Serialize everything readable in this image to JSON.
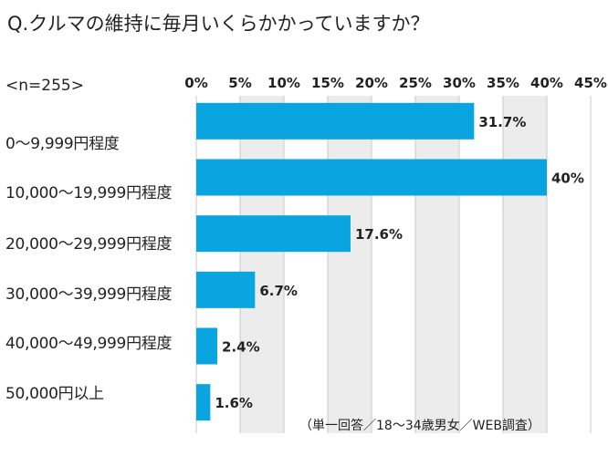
{
  "question": "Q.クルマの維持に毎月いくらかかっていますか？",
  "sample": "<n=255>",
  "note": "（単一回答／18～34歳男女／WEB調査）",
  "colors": {
    "bar": "#0aa5e0",
    "band": "#ececec",
    "axis": "#c8c8c8"
  },
  "chart_data": {
    "type": "bar",
    "orientation": "horizontal",
    "categories": [
      "0～9,999円程度",
      "10,000～19,999円程度",
      "20,000～29,999円程度",
      "30,000～39,999円程度",
      "40,000～49,999円程度",
      "50,000円以上"
    ],
    "values": [
      31.7,
      40,
      17.6,
      6.7,
      2.4,
      1.6
    ],
    "value_labels": [
      "31.7%",
      "40%",
      "17.6%",
      "6.7%",
      "2.4%",
      "1.6%"
    ],
    "xlim": [
      0,
      45
    ],
    "ticks": [
      0,
      5,
      10,
      15,
      20,
      25,
      30,
      35,
      40,
      45
    ],
    "tick_labels": [
      "0%",
      "5%",
      "10%",
      "15%",
      "20%",
      "25%",
      "30%",
      "35%",
      "40%",
      "45%"
    ],
    "grid": "alternating-bands",
    "ylabel": "",
    "xlabel": ""
  }
}
